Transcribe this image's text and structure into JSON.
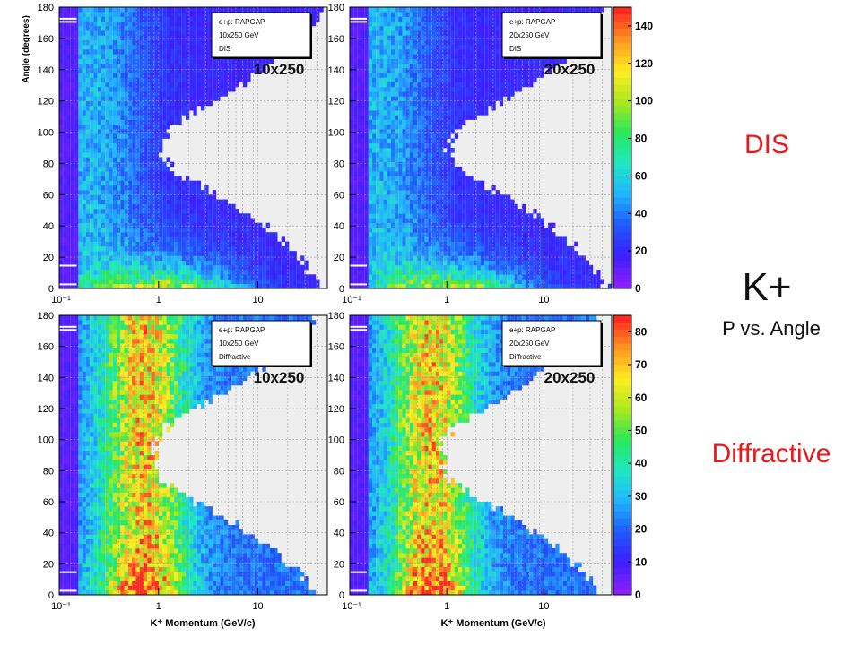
{
  "side_labels": {
    "dis": "DIS",
    "kplus": "K+",
    "p_vs_angle": "P vs. Angle",
    "diffractive": "Diffractive"
  },
  "chart_data": [
    {
      "type": "heatmap",
      "ylabel": "Angle (degrees)",
      "xlabel": "",
      "xscale": "log",
      "xlim": [
        0.1,
        50
      ],
      "ylim": [
        0,
        180
      ],
      "x_tick_labels": [
        "10⁻¹",
        "1",
        "10"
      ],
      "y_tick_labels": [
        "0",
        "20",
        "40",
        "60",
        "80",
        "100",
        "120",
        "140",
        "160",
        "180"
      ],
      "overlay_label": "10x250",
      "legend": [
        "e+p: RAPGAP",
        "10x250 GeV",
        "DIS"
      ],
      "legend_position": "top-right",
      "grid": true,
      "colorbar": false,
      "zmax": 150,
      "process": "DIS"
    },
    {
      "type": "heatmap",
      "xlabel": "",
      "ylabel": "",
      "xscale": "log",
      "xlim": [
        0.1,
        50
      ],
      "ylim": [
        0,
        180
      ],
      "x_tick_labels": [
        "10⁻¹",
        "1",
        "10"
      ],
      "y_tick_labels": [
        "0",
        "20",
        "40",
        "60",
        "80",
        "100",
        "120",
        "140",
        "160",
        "180"
      ],
      "overlay_label": "20x250",
      "legend": [
        "e+p: RAPGAP",
        "20x250 GeV",
        "DIS"
      ],
      "legend_position": "top-right",
      "grid": true,
      "colorbar": true,
      "colorbar_ticks": [
        "0",
        "20",
        "40",
        "60",
        "80",
        "100",
        "120",
        "140"
      ],
      "colorbar_max": 150,
      "zmax": 150,
      "process": "DIS"
    },
    {
      "type": "heatmap",
      "xlabel": "K⁺ Momentum (GeV/c)",
      "ylabel": "",
      "xscale": "log",
      "xlim": [
        0.1,
        50
      ],
      "ylim": [
        0,
        180
      ],
      "x_tick_labels": [
        "10⁻¹",
        "1",
        "10"
      ],
      "y_tick_labels": [
        "0",
        "20",
        "40",
        "60",
        "80",
        "100",
        "120",
        "140",
        "160",
        "180"
      ],
      "overlay_label": "10x250",
      "legend": [
        "e+p: RAPGAP",
        "10x250 GeV",
        "Diffractive"
      ],
      "legend_position": "top-right",
      "grid": true,
      "colorbar": false,
      "zmax": 85,
      "process": "Diffractive"
    },
    {
      "type": "heatmap",
      "xlabel": "K⁺ Momentum (GeV/c)",
      "ylabel": "",
      "xscale": "log",
      "xlim": [
        0.1,
        50
      ],
      "ylim": [
        0,
        180
      ],
      "x_tick_labels": [
        "10⁻¹",
        "1",
        "10"
      ],
      "y_tick_labels": [
        "0",
        "20",
        "40",
        "60",
        "80",
        "100",
        "120",
        "140",
        "160",
        "180"
      ],
      "overlay_label": "20x250",
      "legend": [
        "e+p: RAPGAP",
        "20x250 GeV",
        "Diffractive"
      ],
      "legend_position": "top-right",
      "grid": true,
      "colorbar": true,
      "colorbar_ticks": [
        "0",
        "10",
        "20",
        "30",
        "40",
        "50",
        "60",
        "70",
        "80"
      ],
      "colorbar_max": 85,
      "zmax": 85,
      "process": "Diffractive"
    }
  ],
  "colors": {
    "dis_label": "#e8191b",
    "diffractive_label": "#e8191b",
    "overlay_label": "#111111",
    "plot_background": "#eeeeee",
    "palette": [
      "#8a1fff",
      "#3b1fff",
      "#1f5bff",
      "#1fb6ff",
      "#1fe8c4",
      "#28e85a",
      "#a8e81f",
      "#ffee1f",
      "#ff9a1f",
      "#ff2a1f"
    ]
  }
}
